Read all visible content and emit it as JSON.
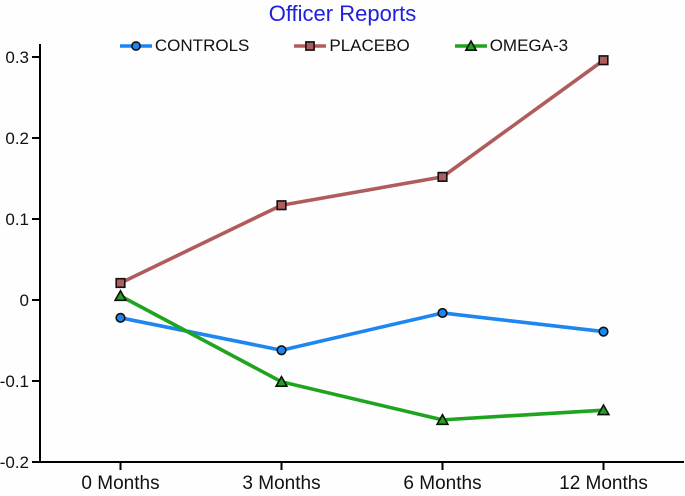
{
  "title": "Officer Reports",
  "title_color": "#2020dd",
  "chart_data": {
    "type": "line",
    "title": "Officer Reports",
    "categories": [
      "0 Months",
      "3 Months",
      "6 Months",
      "12 Months"
    ],
    "series": [
      {
        "name": "CONTROLS",
        "marker": "circle",
        "color": "#1e86f0",
        "values": [
          -0.022,
          -0.062,
          -0.016,
          -0.039
        ]
      },
      {
        "name": "PLACEBO",
        "marker": "square",
        "color": "#b05c5c",
        "values": [
          0.021,
          0.117,
          0.152,
          0.296
        ]
      },
      {
        "name": "OMEGA-3",
        "marker": "triangle",
        "color": "#1fa41f",
        "values": [
          0.005,
          -0.101,
          -0.148,
          -0.136
        ]
      }
    ],
    "xlabel": "",
    "ylabel": "",
    "ylim": [
      -0.2,
      0.3
    ],
    "yticks": [
      -0.2,
      -0.1,
      0,
      0.1,
      0.2,
      0.3
    ],
    "ytick_labels": [
      "-0.2",
      "-0.1",
      "0",
      "0.1",
      "0.2",
      "0.3"
    ],
    "grid": false,
    "legend_position": "top",
    "axis_color": "#000000",
    "marker_outline_color": "#101010"
  }
}
